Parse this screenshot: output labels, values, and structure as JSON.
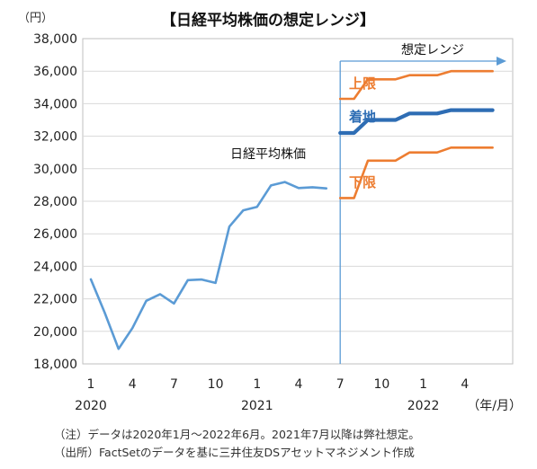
{
  "chart_data": {
    "type": "line",
    "title": "【日経平均株価の想定レンジ】",
    "unit_label": "（円）",
    "ylim": [
      18000,
      38000
    ],
    "y_ticks": [
      18000,
      20000,
      22000,
      24000,
      26000,
      28000,
      30000,
      32000,
      34000,
      36000,
      38000
    ],
    "y_tick_labels": [
      "18,000",
      "20,000",
      "22,000",
      "24,000",
      "26,000",
      "28,000",
      "30,000",
      "32,000",
      "34,000",
      "36,000",
      "38,000"
    ],
    "x_tick_labels": [
      "1",
      "4",
      "7",
      "10",
      "1",
      "4",
      "7",
      "10",
      "1",
      "4"
    ],
    "x_tick_dates": [
      "2020-01",
      "2020-04",
      "2020-07",
      "2020-10",
      "2021-01",
      "2021-04",
      "2021-07",
      "2021-10",
      "2022-01",
      "2022-04"
    ],
    "year_labels": [
      {
        "text": "2020",
        "at": "2020-01"
      },
      {
        "text": "2021",
        "at": "2021-01"
      },
      {
        "text": "2022",
        "at": "2022-01"
      }
    ],
    "x_unit_label": "（年/月）",
    "forecast_start": "2021-07",
    "forecast_label": "想定レンジ",
    "series": [
      {
        "name": "日経平均株価",
        "color": "#5b9bd5",
        "x": [
          "2020-01",
          "2020-02",
          "2020-03",
          "2020-04",
          "2020-05",
          "2020-06",
          "2020-07",
          "2020-08",
          "2020-09",
          "2020-10",
          "2020-11",
          "2020-12",
          "2021-01",
          "2021-02",
          "2021-03",
          "2021-04",
          "2021-05",
          "2021-06"
        ],
        "values": [
          23200,
          21150,
          18920,
          20200,
          21880,
          22290,
          21710,
          23150,
          23190,
          22980,
          26440,
          27440,
          27660,
          28970,
          29180,
          28810,
          28860,
          28790
        ]
      },
      {
        "name": "上限",
        "color": "#ed7d31",
        "x": [
          "2021-07",
          "2021-08",
          "2021-09",
          "2021-10",
          "2021-11",
          "2021-12",
          "2022-01",
          "2022-02",
          "2022-03",
          "2022-04",
          "2022-05",
          "2022-06"
        ],
        "values": [
          34300,
          34300,
          35500,
          35500,
          35500,
          35750,
          35750,
          35750,
          36000,
          36000,
          36000,
          36000
        ]
      },
      {
        "name": "着地",
        "color": "#2e6db4",
        "x": [
          "2021-07",
          "2021-08",
          "2021-09",
          "2021-10",
          "2021-11",
          "2021-12",
          "2022-01",
          "2022-02",
          "2022-03",
          "2022-04",
          "2022-05",
          "2022-06"
        ],
        "values": [
          32200,
          32200,
          33000,
          33000,
          33000,
          33400,
          33400,
          33400,
          33600,
          33600,
          33600,
          33600
        ]
      },
      {
        "name": "下限",
        "color": "#ed7d31",
        "x": [
          "2021-07",
          "2021-08",
          "2021-09",
          "2021-10",
          "2021-11",
          "2021-12",
          "2022-01",
          "2022-02",
          "2022-03",
          "2022-04",
          "2022-05",
          "2022-06"
        ],
        "values": [
          28200,
          28200,
          30500,
          30500,
          30500,
          31000,
          31000,
          31000,
          31300,
          31300,
          31300,
          31300
        ]
      }
    ],
    "grid": true,
    "legend": "none"
  },
  "notes": [
    "（注）データは2020年1月～2022年6月。2021年7月以降は弊社想定。",
    "（出所）FactSetのデータを基に三井住友DSアセットマネジメント作成"
  ]
}
